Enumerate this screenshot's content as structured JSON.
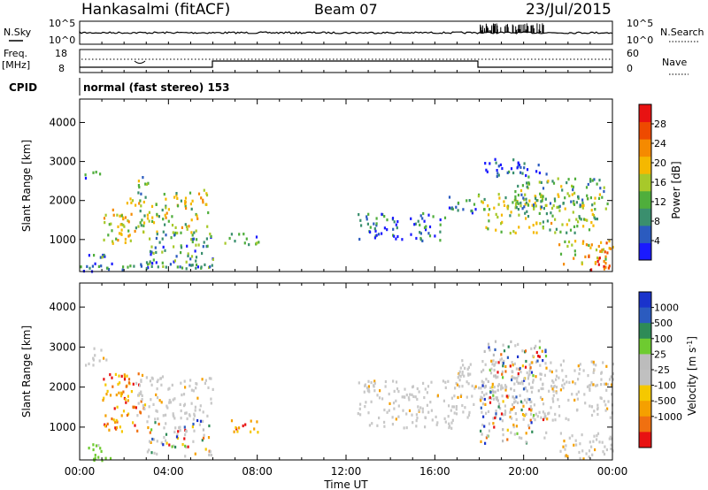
{
  "header": {
    "station": "Hankasalmi (fitACF)",
    "beam": "Beam 07",
    "date": "23/Jul/2015"
  },
  "top_panel": {
    "left_label": "N.Sky",
    "left_ticks": [
      "10^5",
      "10^0"
    ],
    "right_label": "N.Search",
    "right_ticks": [
      "10^5",
      "10^0"
    ]
  },
  "freq_panel": {
    "label_line1": "Freq.",
    "label_line2": "[MHz]",
    "left_ticks": [
      "18",
      "8"
    ],
    "right_label": "Nave",
    "right_ticks": [
      "60",
      "0"
    ]
  },
  "cpid": {
    "label": "CPID",
    "mode": "normal (fast stereo) 153"
  },
  "colors": {
    "power": [
      "#1a1aff",
      "#2b5bbf",
      "#3a8f6e",
      "#4fae3c",
      "#a7c92a",
      "#f5b800",
      "#f58a00",
      "#ee4a00",
      "#e81212"
    ],
    "velocity": [
      "#e81212",
      "#f07010",
      "#f5a000",
      "#f5c800",
      "#c0c0c0",
      "#bcbcbc",
      "#6ecb30",
      "#2e8b57",
      "#2b5bbf",
      "#1a33cc"
    ]
  },
  "chart_data": [
    {
      "type": "heatmap",
      "title": "Power",
      "xlabel": "Time UT",
      "ylabel": "Slant Range [km]",
      "x_ticks": [
        "00:00",
        "04:00",
        "08:00",
        "12:00",
        "16:00",
        "20:00",
        "00:00"
      ],
      "y_ticks": [
        1000,
        2000,
        3000,
        4000
      ],
      "ylim": [
        180,
        4600
      ],
      "colorbar": {
        "label": "Power [dB]",
        "ticks": [
          4,
          8,
          12,
          16,
          20,
          24,
          28
        ],
        "range": [
          0,
          32
        ]
      },
      "regions": [
        {
          "t": [
            0.0,
            1.2
          ],
          "r": [
            200,
            700
          ],
          "level": 0.25
        },
        {
          "t": [
            0.2,
            1.0
          ],
          "r": [
            2550,
            2800
          ],
          "level": 0.2
        },
        {
          "t": [
            1.0,
            2.5
          ],
          "r": [
            900,
            2100
          ],
          "level": 0.55
        },
        {
          "t": [
            2.5,
            5.8
          ],
          "r": [
            1200,
            2300
          ],
          "level": 0.5
        },
        {
          "t": [
            2.6,
            3.2
          ],
          "r": [
            2200,
            2700
          ],
          "level": 0.35
        },
        {
          "t": [
            3.0,
            6.0
          ],
          "r": [
            300,
            1200
          ],
          "level": 0.3
        },
        {
          "t": [
            0.0,
            6.0
          ],
          "r": [
            250,
            450
          ],
          "level": 0.2
        },
        {
          "t": [
            6.5,
            8.2
          ],
          "r": [
            900,
            1200
          ],
          "level": 0.3
        },
        {
          "t": [
            12.5,
            16.5
          ],
          "r": [
            1000,
            1700
          ],
          "level": 0.2
        },
        {
          "t": [
            16.5,
            18.0
          ],
          "r": [
            1700,
            2200
          ],
          "level": 0.25
        },
        {
          "t": [
            18.0,
            23.5
          ],
          "r": [
            1200,
            2200
          ],
          "level": 0.45
        },
        {
          "t": [
            19.5,
            23.8
          ],
          "r": [
            1800,
            2600
          ],
          "level": 0.35
        },
        {
          "t": [
            18.2,
            21.0
          ],
          "r": [
            2600,
            3100
          ],
          "level": 0.12
        },
        {
          "t": [
            21.5,
            24.0
          ],
          "r": [
            300,
            1000
          ],
          "level": 0.6
        },
        {
          "t": [
            23.0,
            24.0
          ],
          "r": [
            250,
            600
          ],
          "level": 0.9
        }
      ]
    },
    {
      "type": "heatmap",
      "title": "Velocity",
      "xlabel": "Time UT",
      "ylabel": "Slant Range [km]",
      "x_ticks": [
        "00:00",
        "04:00",
        "08:00",
        "12:00",
        "16:00",
        "20:00",
        "00:00"
      ],
      "y_ticks": [
        1000,
        2000,
        3000,
        4000
      ],
      "ylim": [
        180,
        4600
      ],
      "colorbar": {
        "label": "Velocity [m s^-1]",
        "ticks": [
          1000,
          500,
          100,
          25,
          -25,
          -100,
          -500,
          -1000
        ]
      },
      "regions": [
        {
          "t": [
            0.0,
            1.5
          ],
          "r": [
            200,
            600
          ],
          "v": "positive"
        },
        {
          "t": [
            0.2,
            1.2
          ],
          "r": [
            2550,
            3000
          ],
          "v": "ground"
        },
        {
          "t": [
            1.0,
            3.0
          ],
          "r": [
            900,
            2400
          ],
          "v": "negative"
        },
        {
          "t": [
            2.5,
            6.0
          ],
          "r": [
            1200,
            2300
          ],
          "v": "ground"
        },
        {
          "t": [
            3.0,
            6.0
          ],
          "r": [
            300,
            1200
          ],
          "v": "mixed"
        },
        {
          "t": [
            6.5,
            8.2
          ],
          "r": [
            900,
            1200
          ],
          "v": "negative"
        },
        {
          "t": [
            12.5,
            17.0
          ],
          "r": [
            1000,
            2200
          ],
          "v": "ground"
        },
        {
          "t": [
            17.0,
            24.0
          ],
          "r": [
            1200,
            2700
          ],
          "v": "ground"
        },
        {
          "t": [
            18.0,
            21.0
          ],
          "r": [
            600,
            3200
          ],
          "v": "mixed"
        },
        {
          "t": [
            21.5,
            24.0
          ],
          "r": [
            200,
            900
          ],
          "v": "ground"
        }
      ]
    }
  ]
}
